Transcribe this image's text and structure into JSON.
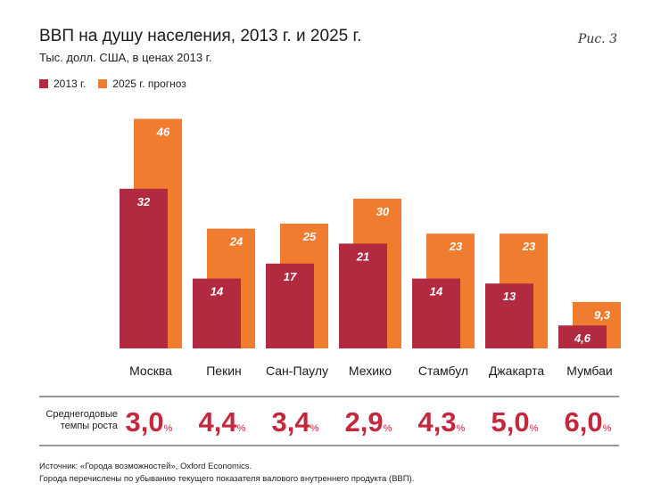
{
  "title": "ВВП на душу населения, 2013 г. и 2025 г.",
  "subtitle": "Тыс. долл. США, в ценах 2013 г.",
  "figure_label": "Рис. 3",
  "colors": {
    "s2013": "#b12a3f",
    "s2025": "#f07c30",
    "rate": "#c4283c"
  },
  "chart_data": {
    "type": "bar",
    "title": "ВВП на душу населения, 2013 г. и 2025 г.",
    "subtitle": "Тыс. долл. США, в ценах 2013 г.",
    "categories": [
      "Москва",
      "Пекин",
      "Сан-Паулу",
      "Мехико",
      "Стамбул",
      "Джакарта",
      "Мумбаи"
    ],
    "series": [
      {
        "name": "2013 г.",
        "values": [
          32,
          14,
          17,
          21,
          14,
          13,
          4.6
        ],
        "labels": [
          "32",
          "14",
          "17",
          "21",
          "14",
          "13",
          "4,6"
        ]
      },
      {
        "name": "2025 г. прогноз",
        "values": [
          46,
          24,
          25,
          30,
          23,
          23,
          9.3
        ],
        "labels": [
          "46",
          "24",
          "25",
          "30",
          "23",
          "23",
          "9,3"
        ]
      }
    ],
    "legend": "top-left",
    "grid": false
  },
  "growth": {
    "label": "Среднегодовые темпы роста",
    "unit": "%",
    "values": [
      "3,0",
      "4,4",
      "3,4",
      "2,9",
      "4,3",
      "5,0",
      "6,0"
    ]
  },
  "source": {
    "line1": "Источник: «Города возможностей», Oxford Economics.",
    "line2": "Города перечислены по убыванию текущего показателя валового внутреннего продукта (ВВП)."
  }
}
